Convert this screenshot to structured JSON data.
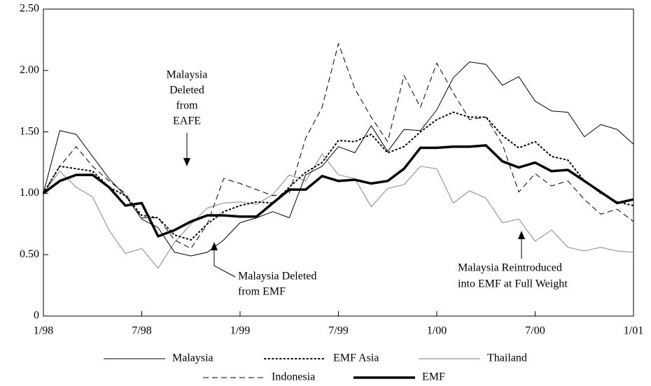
{
  "chart_data": {
    "type": "line",
    "categories": [
      "1/98",
      null,
      null,
      null,
      null,
      null,
      "7/98",
      null,
      null,
      null,
      null,
      null,
      "1/99",
      null,
      null,
      null,
      null,
      null,
      "7/99",
      null,
      null,
      null,
      null,
      null,
      "1/00",
      null,
      null,
      null,
      null,
      null,
      "7/00",
      null,
      null,
      null,
      null,
      null,
      "1/01"
    ],
    "series": [
      {
        "name": "Malaysia",
        "color": "#000000",
        "style": "solid",
        "width": 1,
        "values": [
          1.0,
          1.51,
          1.48,
          1.3,
          1.12,
          0.98,
          0.79,
          0.72,
          0.52,
          0.49,
          0.52,
          0.62,
          0.76,
          0.8,
          0.85,
          0.8,
          1.15,
          1.22,
          1.38,
          1.33,
          1.55,
          1.34,
          1.52,
          1.51,
          1.68,
          1.94,
          2.07,
          2.05,
          1.88,
          1.95,
          1.75,
          1.67,
          1.66,
          1.46,
          1.56,
          1.52,
          1.4
        ]
      },
      {
        "name": "EMF Asia",
        "color": "#000000",
        "style": "dotted",
        "width": 2,
        "values": [
          1.0,
          1.22,
          1.2,
          1.18,
          1.05,
          0.98,
          0.82,
          0.8,
          0.66,
          0.62,
          0.75,
          0.85,
          0.9,
          0.93,
          0.92,
          1.05,
          1.17,
          1.25,
          1.43,
          1.42,
          1.48,
          1.33,
          1.38,
          1.5,
          1.6,
          1.66,
          1.62,
          1.62,
          1.47,
          1.37,
          1.42,
          1.3,
          1.27,
          1.1,
          1.0,
          0.93,
          0.9
        ]
      },
      {
        "name": "Thailand",
        "color": "#999999",
        "style": "solid",
        "width": 1.2,
        "values": [
          1.0,
          1.18,
          1.05,
          0.97,
          0.7,
          0.51,
          0.55,
          0.39,
          0.6,
          0.75,
          0.88,
          0.92,
          0.93,
          0.91,
          0.99,
          1.15,
          1.1,
          1.32,
          1.15,
          1.12,
          0.89,
          1.04,
          1.07,
          1.22,
          1.2,
          0.92,
          1.02,
          0.96,
          0.76,
          0.79,
          0.61,
          0.7,
          0.56,
          0.53,
          0.56,
          0.53,
          0.52
        ]
      },
      {
        "name": "Indonesia",
        "color": "#000000",
        "style": "dashed",
        "width": 1,
        "values": [
          1.0,
          1.22,
          1.38,
          1.22,
          1.1,
          1.0,
          0.8,
          0.8,
          0.62,
          0.55,
          0.75,
          1.12,
          1.08,
          1.03,
          0.98,
          1.0,
          1.45,
          1.7,
          2.22,
          1.85,
          1.62,
          1.42,
          1.96,
          1.7,
          2.06,
          1.82,
          1.6,
          1.62,
          1.4,
          1.01,
          1.16,
          1.06,
          1.1,
          0.95,
          0.83,
          0.87,
          0.77
        ]
      },
      {
        "name": "EMF",
        "color": "#000000",
        "style": "solid",
        "width": 3.5,
        "values": [
          1.0,
          1.1,
          1.15,
          1.15,
          1.05,
          0.9,
          0.92,
          0.65,
          0.7,
          0.77,
          0.82,
          0.82,
          0.81,
          0.81,
          0.92,
          1.03,
          1.03,
          1.14,
          1.1,
          1.11,
          1.08,
          1.1,
          1.2,
          1.37,
          1.37,
          1.38,
          1.38,
          1.39,
          1.26,
          1.21,
          1.25,
          1.18,
          1.19,
          1.1,
          1.01,
          0.92,
          0.95
        ]
      }
    ],
    "ylim": [
      0,
      2.5
    ],
    "yticks": [
      0,
      {
        "value": 0.5,
        "label": "0.50"
      },
      {
        "value": 1,
        "label": "1.00"
      },
      {
        "value": 1.5,
        "label": "1.50"
      },
      {
        "value": 2,
        "label": "2.00"
      },
      {
        "value": 2.5,
        "label": "2.50"
      }
    ],
    "annotations": [
      {
        "lines": [
          "Malaysia",
          "Deleted",
          "from",
          "EAFE"
        ]
      },
      {
        "lines": [
          "Malaysia Deleted",
          "from EMF"
        ]
      },
      {
        "lines": [
          "Malaysia Reintroduced",
          "into EMF at Full Weight"
        ]
      }
    ]
  }
}
